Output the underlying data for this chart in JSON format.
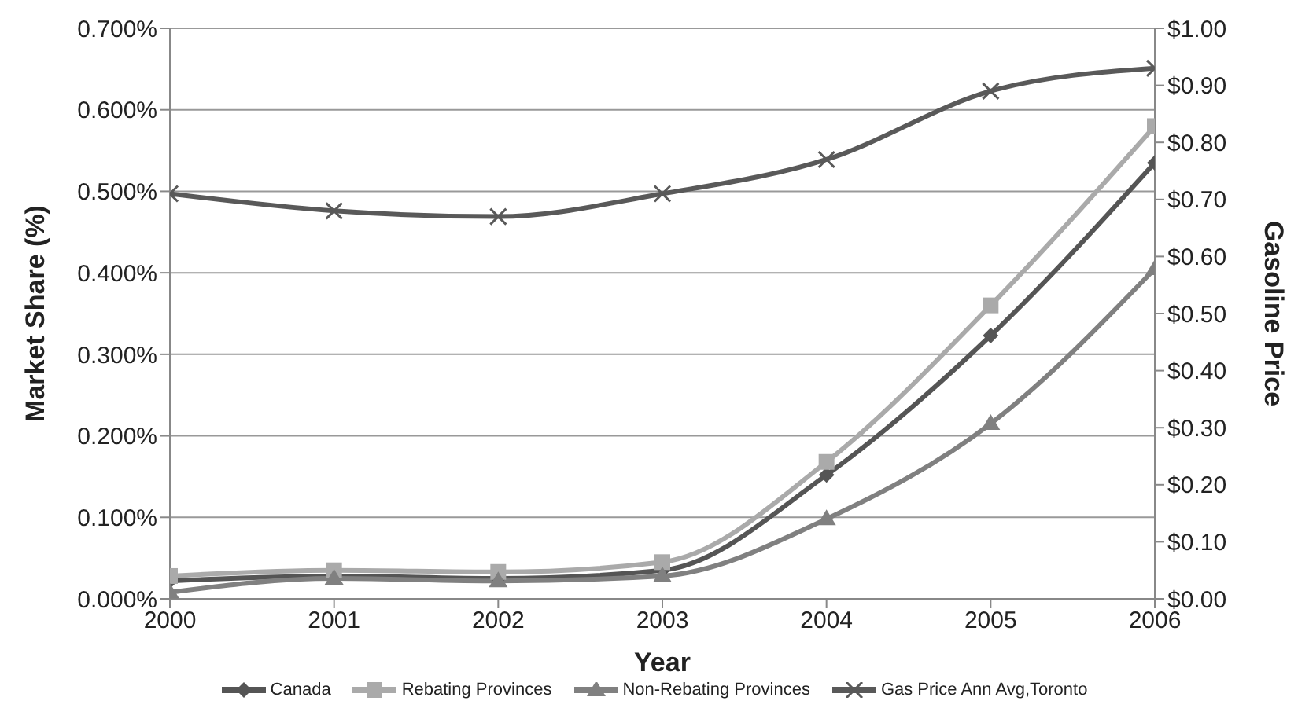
{
  "chart_data": {
    "type": "line",
    "xlabel": "Year",
    "ylabel": "Market Share (%)",
    "y2label": "Gasoline Price",
    "x": [
      2000,
      2001,
      2002,
      2003,
      2004,
      2005,
      2006
    ],
    "xlim": [
      2000,
      2006
    ],
    "xticks": [
      2000,
      2001,
      2002,
      2003,
      2004,
      2005,
      2006
    ],
    "ylim": [
      0,
      0.7
    ],
    "yticks": [
      {
        "value": 0,
        "label": "0.000%"
      },
      {
        "value": 0.1,
        "label": "0.100%"
      },
      {
        "value": 0.2,
        "label": "0.200%"
      },
      {
        "value": 0.3,
        "label": "0.300%"
      },
      {
        "value": 0.4,
        "label": "0.400%"
      },
      {
        "value": 0.5,
        "label": "0.500%"
      },
      {
        "value": 0.6,
        "label": "0.600%"
      },
      {
        "value": 0.7,
        "label": "0.700%"
      }
    ],
    "y2lim": [
      0,
      1
    ],
    "y2ticks": [
      {
        "value": 0,
        "label": "$0.00"
      },
      {
        "value": 0.1,
        "label": "$0.10"
      },
      {
        "value": 0.2,
        "label": "$0.20"
      },
      {
        "value": 0.3,
        "label": "$0.30"
      },
      {
        "value": 0.4,
        "label": "$0.40"
      },
      {
        "value": 0.5,
        "label": "$0.50"
      },
      {
        "value": 0.6,
        "label": "$0.60"
      },
      {
        "value": 0.7,
        "label": "$0.70"
      },
      {
        "value": 0.8,
        "label": "$0.80"
      },
      {
        "value": 0.9,
        "label": "$0.90"
      },
      {
        "value": 1,
        "label": "$1.00"
      }
    ],
    "grid": "y",
    "legend": "bottom",
    "line_style": "solid",
    "series": [
      {
        "name": "Canada",
        "color": "#555555",
        "marker": "diamond",
        "values": [
          0.022,
          0.028,
          0.025,
          0.035,
          0.152,
          0.323,
          0.535
        ]
      },
      {
        "name": "Rebating Provinces",
        "color": "#aaaaaa",
        "marker": "square",
        "values": [
          0.028,
          0.035,
          0.033,
          0.045,
          0.168,
          0.36,
          0.58
        ]
      },
      {
        "name": "Non-Rebating Provinces",
        "color": "#808080",
        "marker": "triangle",
        "values": [
          0.008,
          0.025,
          0.022,
          0.028,
          0.098,
          0.215,
          0.405
        ]
      },
      {
        "name": "Gas Price Ann Avg,Toronto",
        "color": "#595959",
        "marker": "cross",
        "axis": "y2",
        "values": [
          0.71,
          0.68,
          0.67,
          0.71,
          0.77,
          0.89,
          0.93
        ]
      }
    ]
  }
}
